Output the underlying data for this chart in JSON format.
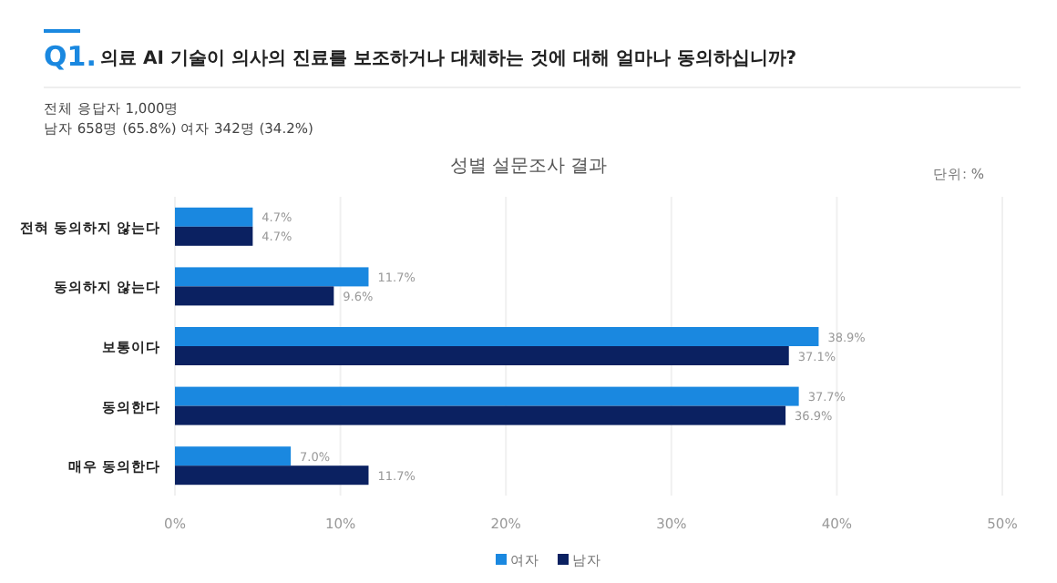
{
  "chart_data": {
    "type": "bar",
    "orientation": "horizontal",
    "title": "성별 설문조사 결과",
    "annotations": [
      "Q1.",
      "의료 AI 기술이 의사의 진료를 보조하거나 대체하는 것에 대해 얼마나 동의하십니까?",
      "전체 응답자 1,000명",
      "남자 658명 (65.8%) 여자 342명 (34.2%)",
      "단위: %"
    ],
    "categories": [
      "전혀 동의하지 않는다",
      "동의하지 않는다",
      "보통이다",
      "동의한다",
      "매우 동의한다"
    ],
    "series": [
      {
        "name": "여자",
        "color": "#1a88e0",
        "values": [
          4.7,
          11.7,
          38.9,
          37.7,
          7.0
        ],
        "value_labels": [
          "4.7%",
          "11.7%",
          "38.9%",
          "37.7%",
          "7.0%"
        ]
      },
      {
        "name": "남자",
        "color": "#0b2161",
        "values": [
          4.7,
          9.6,
          37.1,
          36.9,
          11.7
        ],
        "value_labels": [
          "4.7%",
          "9.6%",
          "37.1%",
          "36.9%",
          "11.7%"
        ]
      }
    ],
    "xlim": [
      0,
      50
    ],
    "xticks": [
      {
        "value": 0,
        "label": "0%"
      },
      {
        "value": 10,
        "label": "10%"
      },
      {
        "value": 20,
        "label": "20%"
      },
      {
        "value": 30,
        "label": "30%"
      },
      {
        "value": 40,
        "label": "40%"
      },
      {
        "value": 50,
        "label": "50%"
      }
    ],
    "grid": "x",
    "legend": "bottom"
  }
}
